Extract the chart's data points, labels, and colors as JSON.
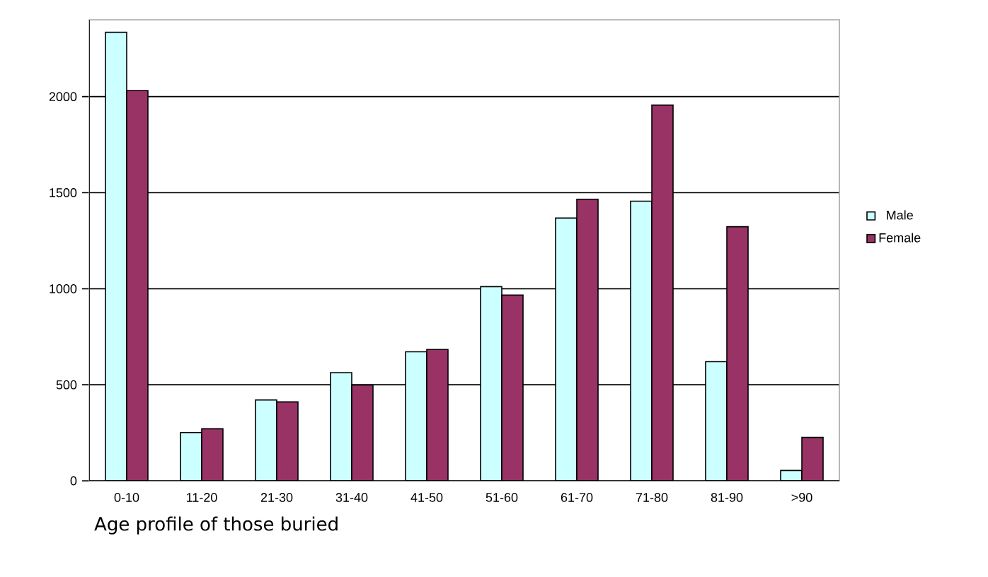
{
  "chart_data": {
    "type": "bar",
    "title": "Age profile of those buried",
    "categories": [
      "0-10",
      "11-20",
      "21-30",
      "31-40",
      "41-50",
      "51-60",
      "61-70",
      "71-80",
      "81-90",
      ">90"
    ],
    "series": [
      {
        "name": "Male",
        "color": "#ccffff",
        "values": [
          2335,
          251,
          421,
          563,
          672,
          1011,
          1368,
          1456,
          620,
          54
        ]
      },
      {
        "name": "Female",
        "color": "#993366",
        "values": [
          2032,
          271,
          411,
          499,
          684,
          967,
          1466,
          1956,
          1323,
          226
        ]
      }
    ],
    "ylim": [
      0,
      2400
    ],
    "yticks": [
      0,
      500,
      1000,
      1500,
      2000
    ],
    "grid": "y",
    "legend": "right"
  }
}
